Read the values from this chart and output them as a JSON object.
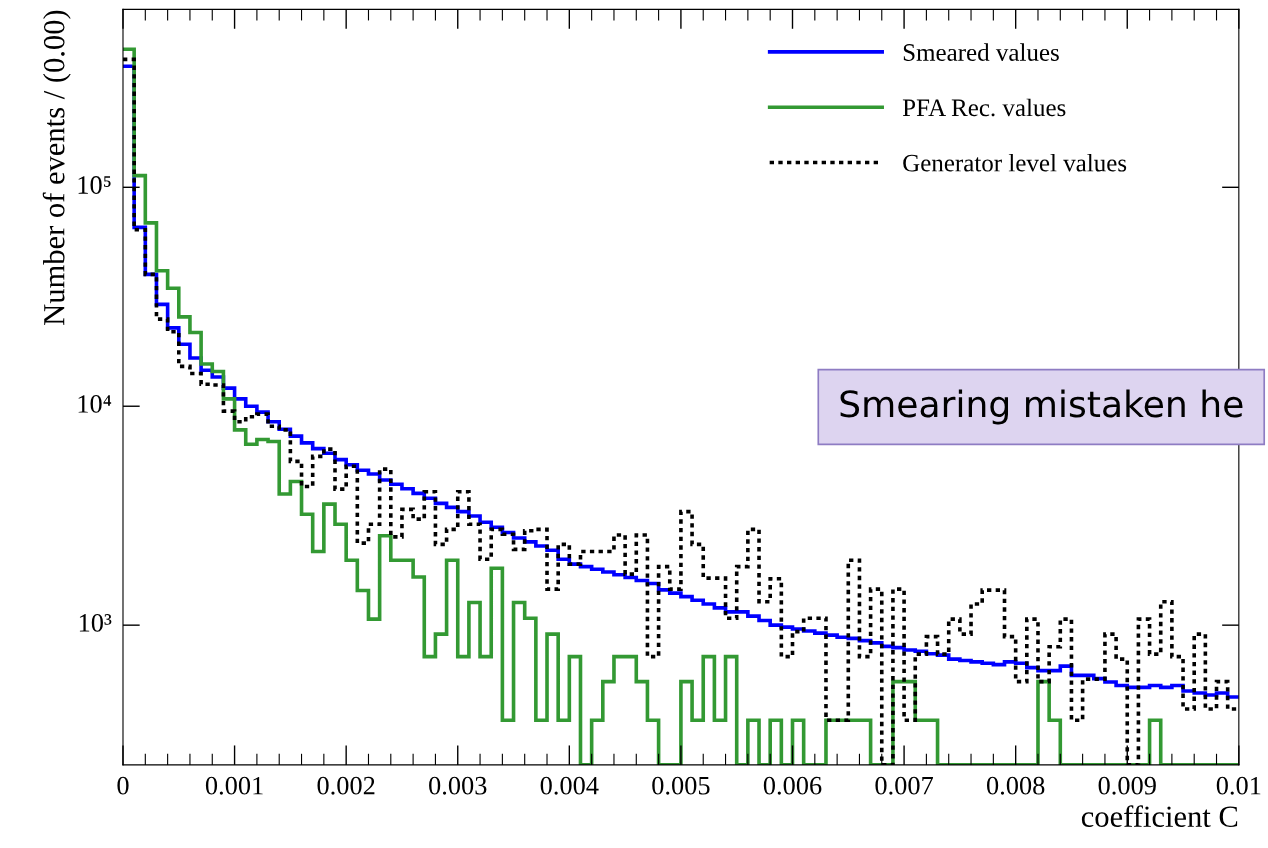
{
  "chart_data": {
    "type": "histogram",
    "xlabel": "coefficient C",
    "ylabel": "Number of events / (0.00)",
    "bins": [
      0,
      0.0001,
      0.0002,
      0.0003,
      0.0004,
      0.0005,
      0.0006,
      0.0007,
      0.0008,
      0.0009,
      0.001,
      0.0011,
      0.0012,
      0.0013,
      0.0014,
      0.0015,
      0.0016,
      0.0017,
      0.0018,
      0.0019,
      0.002,
      0.0021,
      0.0022,
      0.0023,
      0.0024,
      0.0025,
      0.0026,
      0.0027,
      0.0028,
      0.0029,
      0.003,
      0.0031,
      0.0032,
      0.0033,
      0.0034,
      0.0035,
      0.0036,
      0.0037,
      0.0038,
      0.0039,
      0.004,
      0.0041,
      0.0042,
      0.0043,
      0.0044,
      0.0045,
      0.0046,
      0.0047,
      0.0048,
      0.0049,
      0.005,
      0.0051,
      0.0052,
      0.0053,
      0.0054,
      0.0055,
      0.0056,
      0.0057,
      0.0058,
      0.0059,
      0.006,
      0.0061,
      0.0062,
      0.0063,
      0.0064,
      0.0065,
      0.0066,
      0.0067,
      0.0068,
      0.0069,
      0.007,
      0.0071,
      0.0072,
      0.0073,
      0.0074,
      0.0075,
      0.0076,
      0.0077,
      0.0078,
      0.0079,
      0.008,
      0.0081,
      0.0082,
      0.0083,
      0.0084,
      0.0085,
      0.0086,
      0.0087,
      0.0088,
      0.0089,
      0.009,
      0.0091,
      0.0092,
      0.0093,
      0.0094,
      0.0095,
      0.0096,
      0.0097,
      0.0098,
      0.0099,
      0.01
    ],
    "series": [
      {
        "name": "Smeared values",
        "color": "#0000ff",
        "line_style": "solid",
        "values": [
          357000,
          65600,
          40000,
          29200,
          22800,
          19200,
          16600,
          14600,
          13600,
          12100,
          10800,
          10000,
          9400,
          8500,
          7850,
          7300,
          6800,
          6400,
          6100,
          5700,
          5400,
          5100,
          4900,
          4600,
          4400,
          4200,
          4000,
          3800,
          3600,
          3450,
          3300,
          3150,
          2950,
          2800,
          2650,
          2500,
          2400,
          2300,
          2200,
          2000,
          1900,
          1850,
          1800,
          1750,
          1700,
          1650,
          1600,
          1550,
          1450,
          1400,
          1350,
          1300,
          1250,
          1200,
          1150,
          1150,
          1100,
          1050,
          1000,
          980,
          960,
          940,
          920,
          900,
          880,
          870,
          850,
          830,
          800,
          790,
          770,
          760,
          740,
          730,
          700,
          690,
          680,
          670,
          660,
          680,
          670,
          640,
          620,
          620,
          650,
          590,
          590,
          570,
          550,
          530,
          520,
          520,
          530,
          520,
          530,
          500,
          490,
          480,
          490,
          470
        ]
      },
      {
        "name": "PFA Rec. values",
        "color": "#339933",
        "line_style": "solid",
        "values": [
          427000,
          113000,
          68800,
          41600,
          34600,
          25600,
          21700,
          15600,
          14400,
          10800,
          7800,
          6700,
          7050,
          6900,
          3970,
          4530,
          3210,
          2170,
          3570,
          2890,
          1980,
          1440,
          1065,
          2560,
          1980,
          1980,
          1660,
          718,
          910,
          1980,
          718,
          1270,
          718,
          1820,
          368,
          1270,
          1076,
          368,
          910,
          368,
          718,
          null,
          368,
          552,
          718,
          718,
          552,
          368,
          null,
          null,
          552,
          368,
          718,
          368,
          718,
          null,
          368,
          null,
          368,
          null,
          368,
          null,
          null,
          368,
          368,
          368,
          368,
          null,
          null,
          552,
          552,
          368,
          368,
          null,
          null,
          null,
          null,
          null,
          null,
          null,
          null,
          null,
          552,
          368,
          null,
          null,
          null,
          null,
          null,
          null,
          null,
          null,
          368,
          null,
          null,
          null,
          null,
          null,
          null,
          null
        ]
      },
      {
        "name": "Generator level values",
        "color": "#000000",
        "line_style": "dotted",
        "values": [
          384000,
          64000,
          40000,
          25000,
          21900,
          15200,
          14100,
          12600,
          12500,
          9500,
          8500,
          8950,
          9200,
          8100,
          7800,
          5600,
          4300,
          5900,
          6370,
          4180,
          5320,
          2370,
          2890,
          5160,
          2530,
          3380,
          3050,
          4070,
          2340,
          2740,
          4070,
          2890,
          2000,
          2740,
          2600,
          2220,
          2700,
          2740,
          1460,
          2340,
          1900,
          2170,
          2170,
          2170,
          2580,
          1710,
          2580,
          718,
          1850,
          1460,
          3300,
          2340,
          1640,
          1640,
          1076,
          1850,
          2740,
          1280,
          1630,
          718,
          934,
          1076,
          1076,
          368,
          368,
          1980,
          718,
          1460,
          null,
          1460,
          368,
          737,
          886,
          737,
          1065,
          910,
          1250,
          1445,
          1445,
          886,
          552,
          1065,
          552,
          797,
          1065,
          368,
          567,
          567,
          910,
          700,
          null,
          1065,
          737,
          1280,
          718,
          414,
          910,
          414,
          552,
          414
        ]
      }
    ],
    "xlim": [
      0,
      0.01
    ],
    "xticks": [
      0,
      0.001,
      0.002,
      0.003,
      0.004,
      0.005,
      0.006,
      0.007,
      0.008,
      0.009,
      0.01
    ],
    "ylim": [
      230,
      650000
    ],
    "yticks": [
      {
        "value": 1000,
        "label": "10³"
      },
      {
        "value": 10000,
        "label": "10⁴"
      },
      {
        "value": 100000,
        "label": "10⁵"
      }
    ],
    "log": "y",
    "grid": false,
    "legend": "top right",
    "annotations": [
      "Smearing mistaken he"
    ]
  }
}
